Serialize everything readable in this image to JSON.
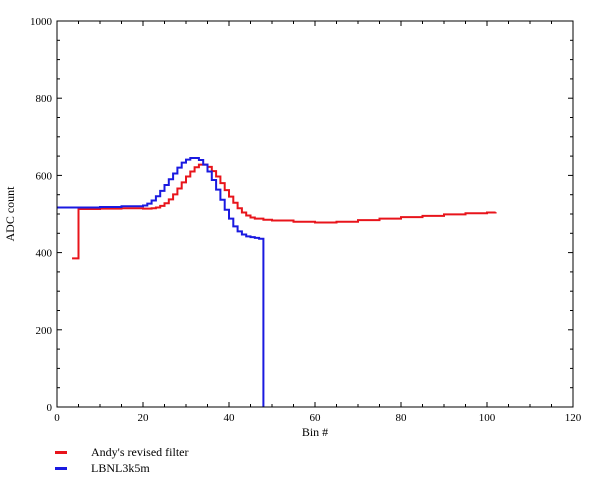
{
  "chart_data": {
    "type": "line",
    "title": "",
    "xlabel": "Bin #",
    "ylabel": "ADC count",
    "xlim": [
      0,
      120
    ],
    "ylim": [
      0,
      1000
    ],
    "xticks": [
      "0",
      "20",
      "40",
      "60",
      "80",
      "100",
      "120"
    ],
    "yticks": [
      "0",
      "200",
      "400",
      "600",
      "800",
      "1000"
    ],
    "grid": false,
    "legend_position": "bottom-left",
    "series": [
      {
        "name": "Andy's revised filter",
        "color": "#e8141b",
        "step": true,
        "x": [
          3.5,
          4.5,
          5,
          10,
          15,
          20,
          21,
          22,
          23,
          24,
          25,
          26,
          27,
          28,
          29,
          30,
          31,
          32,
          33,
          34,
          35,
          36,
          37,
          38,
          39,
          40,
          41,
          42,
          43,
          44,
          45,
          46,
          48,
          50,
          55,
          60,
          65,
          70,
          75,
          80,
          85,
          90,
          95,
          100,
          102
        ],
        "y": [
          385,
          385,
          513,
          514,
          515,
          514,
          514,
          515,
          517,
          521,
          528,
          538,
          551,
          566,
          582,
          597,
          610,
          621,
          628,
          628,
          622,
          611,
          597,
          580,
          562,
          545,
          529,
          515,
          504,
          496,
          491,
          488,
          485,
          483,
          480,
          478,
          480,
          484,
          488,
          492,
          495,
          499,
          502,
          504,
          505
        ]
      },
      {
        "name": "LBNL3k5m",
        "color": "#1a1ae0",
        "step": true,
        "x": [
          0,
          5,
          10,
          15,
          20,
          21,
          22,
          23,
          24,
          25,
          26,
          27,
          28,
          29,
          30,
          31,
          32,
          33,
          34,
          35,
          36,
          37,
          38,
          39,
          40,
          41,
          42,
          43,
          44,
          45,
          46,
          47,
          48,
          48
        ],
        "y": [
          517,
          517,
          518,
          520,
          522,
          527,
          535,
          546,
          560,
          575,
          590,
          605,
          620,
          633,
          641,
          645,
          645,
          640,
          628,
          610,
          588,
          563,
          537,
          511,
          488,
          468,
          455,
          447,
          442,
          440,
          438,
          436,
          436,
          0
        ]
      }
    ]
  }
}
